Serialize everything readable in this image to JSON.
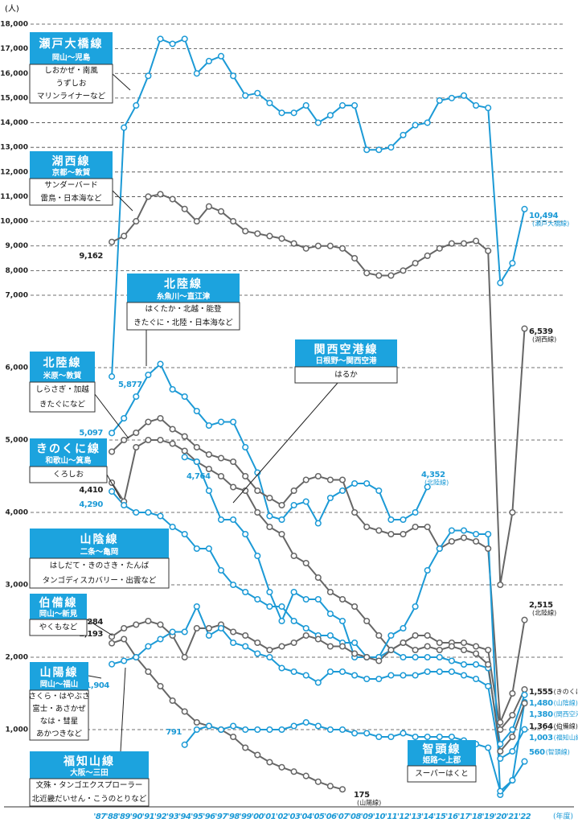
{
  "chart_data": {
    "type": "line",
    "y_label": "(人)",
    "x_label": "(年度)",
    "categories": [
      "'87",
      "'88",
      "'89",
      "'90",
      "'91",
      "'92",
      "'93",
      "'94",
      "'95",
      "'96",
      "'97",
      "'98",
      "'99",
      "'00",
      "'01",
      "'02",
      "'03",
      "'04",
      "'05",
      "'06",
      "'07",
      "'08",
      "'09",
      "'10",
      "'11",
      "'12",
      "'13",
      "'14",
      "'15",
      "'16",
      "'17",
      "'18",
      "'19",
      "'20",
      "'21",
      "'22"
    ],
    "ylim": [
      0,
      18000
    ],
    "y_break": 7000,
    "grid": true,
    "yticks": [
      {
        "value": 1000,
        "label": "1,000"
      },
      {
        "value": 2000,
        "label": "2,000"
      },
      {
        "value": 3000,
        "label": "3,000"
      },
      {
        "value": 4000,
        "label": "4,000"
      },
      {
        "value": 5000,
        "label": "5,000"
      },
      {
        "value": 6000,
        "label": "6,000"
      },
      {
        "value": 7000,
        "label": "7,000"
      },
      {
        "value": 8000,
        "label": "8,000"
      },
      {
        "value": 9000,
        "label": "9,000"
      },
      {
        "value": 10000,
        "label": "10,000"
      },
      {
        "value": 11000,
        "label": "11,000"
      },
      {
        "value": 12000,
        "label": "12,000"
      },
      {
        "value": 13000,
        "label": "13,000"
      },
      {
        "value": 14000,
        "label": "14,000"
      },
      {
        "value": 15000,
        "label": "15,000"
      },
      {
        "value": 16000,
        "label": "16,000"
      },
      {
        "value": 17000,
        "label": "17,000"
      },
      {
        "value": 18000,
        "label": "18,000"
      }
    ],
    "series": [
      {
        "name": "瀬戸大橋線",
        "section": "岡山～児島",
        "trains": [
          "しおかぜ・南風",
          "うずしお",
          "マリンライナーなど"
        ],
        "color": "#1c9ad6",
        "note": "(瀬戸大橋線)",
        "values": [
          null,
          5877,
          13800,
          14700,
          15900,
          17400,
          17200,
          17400,
          16000,
          16500,
          16700,
          15900,
          15100,
          15200,
          14800,
          14400,
          14400,
          14700,
          14000,
          14300,
          14700,
          14700,
          12900,
          12900,
          13000,
          13500,
          13900,
          14000,
          14900,
          15000,
          15100,
          14700,
          14600,
          7500,
          8300,
          10494
        ],
        "value_labels": [
          null,
          "5,877",
          null,
          null,
          null,
          null,
          null,
          null,
          null,
          null,
          null,
          null,
          null,
          null,
          null,
          null,
          null,
          null,
          null,
          null,
          null,
          null,
          null,
          null,
          null,
          null,
          null,
          null,
          null,
          null,
          null,
          null,
          null,
          null,
          null,
          "10,494"
        ]
      },
      {
        "name": "湖西線",
        "section": "京都～敦賀",
        "trains": [
          "サンダーバード",
          "雷鳥・日本海など"
        ],
        "color": "#666666",
        "note": "(湖西線)",
        "values": [
          null,
          9162,
          9400,
          10000,
          11000,
          11100,
          10900,
          10500,
          10000,
          10600,
          10400,
          10000,
          9600,
          9500,
          9400,
          9300,
          9100,
          8900,
          9000,
          9000,
          8900,
          8500,
          7900,
          7800,
          7800,
          8000,
          8300,
          8600,
          8900,
          9100,
          9100,
          9200,
          8800,
          3000,
          4000,
          6539
        ],
        "value_labels": [
          null,
          "9,162",
          null,
          null,
          null,
          null,
          null,
          null,
          null,
          null,
          null,
          null,
          null,
          null,
          null,
          null,
          null,
          null,
          null,
          null,
          null,
          null,
          null,
          null,
          null,
          null,
          null,
          null,
          null,
          null,
          null,
          null,
          null,
          null,
          null,
          "6,539"
        ]
      },
      {
        "name": "北陸線",
        "section": "糸魚川～直江津",
        "trains": [
          "はくたか・北越・能登",
          "きたぐに・北陸・日本海など"
        ],
        "color": "#1c9ad6",
        "note": "(北陸線)",
        "values": [
          null,
          5097,
          5300,
          5600,
          5900,
          6050,
          5700,
          5600,
          5400,
          5200,
          5250,
          5250,
          4900,
          4550,
          3950,
          3900,
          4100,
          4150,
          3850,
          4200,
          4300,
          4400,
          4400,
          4300,
          3900,
          3900,
          4000,
          4352,
          null,
          null,
          null,
          null,
          null,
          null,
          null,
          null
        ],
        "value_labels": [
          null,
          "5,097",
          null,
          null,
          null,
          null,
          null,
          null,
          null,
          null,
          null,
          null,
          null,
          null,
          null,
          null,
          null,
          null,
          null,
          null,
          null,
          null,
          null,
          null,
          null,
          null,
          null,
          "4,352",
          null,
          null,
          null,
          null,
          null,
          null,
          null,
          null
        ]
      },
      {
        "name": "北陸線",
        "section": "米原～敦賀",
        "trains": [
          "しらさぎ・加越",
          "きたぐになど"
        ],
        "color": "#666666",
        "note": "(北陸線)",
        "values": [
          null,
          4839,
          5000,
          5100,
          5250,
          5300,
          5150,
          5050,
          4900,
          4800,
          4750,
          4700,
          4500,
          4300,
          4200,
          4100,
          4300,
          4450,
          4500,
          4450,
          4450,
          4000,
          3800,
          3750,
          3700,
          3700,
          3800,
          3800,
          3500,
          3600,
          3650,
          3600,
          3500,
          1100,
          1500,
          2515
        ],
        "value_labels": [
          null,
          "4,839",
          null,
          null,
          null,
          null,
          null,
          null,
          null,
          null,
          null,
          null,
          null,
          null,
          null,
          null,
          null,
          null,
          null,
          null,
          null,
          null,
          null,
          null,
          null,
          null,
          null,
          null,
          null,
          null,
          null,
          null,
          null,
          null,
          null,
          "2,515"
        ]
      },
      {
        "name": "きのくに線",
        "section": "和歌山～箕島",
        "trains": [
          "くろしお"
        ],
        "color": "#666666",
        "note": "(きのくに線)",
        "values": [
          null,
          4410,
          4150,
          4900,
          5000,
          5000,
          4950,
          4850,
          4700,
          4600,
          4500,
          4350,
          4300,
          4000,
          3800,
          3700,
          3400,
          3300,
          3100,
          2900,
          2800,
          2700,
          2500,
          2300,
          2100,
          2200,
          2300,
          2300,
          2200,
          2200,
          2200,
          2150,
          2100,
          1000,
          1200,
          1555
        ],
        "value_labels": [
          null,
          "4,410",
          null,
          null,
          null,
          null,
          null,
          null,
          null,
          null,
          null,
          null,
          null,
          null,
          null,
          null,
          null,
          null,
          null,
          null,
          null,
          null,
          null,
          null,
          null,
          null,
          null,
          null,
          null,
          null,
          null,
          null,
          null,
          null,
          null,
          "1,555"
        ]
      },
      {
        "name": "山陰線",
        "section": "二条～亀岡",
        "trains": [
          "はしだて・きのさき・たんば",
          "タンゴディスカバリー・出雲など"
        ],
        "color": "#1c9ad6",
        "note": "(山陰線)",
        "values": [
          null,
          4290,
          4100,
          4000,
          4000,
          3950,
          3800,
          3700,
          3500,
          3500,
          3200,
          3000,
          2900,
          2800,
          2700,
          2700,
          2500,
          2400,
          2300,
          2300,
          2200,
          2200,
          2000,
          2000,
          2100,
          2000,
          2000,
          2000,
          2000,
          1950,
          1900,
          1900,
          1850,
          800,
          1000,
          1480
        ],
        "value_labels": [
          null,
          "4,290",
          null,
          null,
          null,
          null,
          null,
          null,
          null,
          null,
          null,
          null,
          null,
          null,
          null,
          null,
          null,
          null,
          null,
          null,
          null,
          null,
          null,
          null,
          null,
          null,
          null,
          null,
          null,
          null,
          null,
          null,
          null,
          null,
          null,
          "1,480"
        ]
      },
      {
        "name": "関西空港線",
        "section": "日根野～関西空港",
        "trains": [
          "はるか"
        ],
        "color": "#1c9ad6",
        "note": "(関西空港線)",
        "values": [
          null,
          null,
          null,
          null,
          null,
          null,
          null,
          4764,
          4700,
          4300,
          3900,
          3900,
          3700,
          3400,
          2900,
          2500,
          2900,
          2800,
          2800,
          2600,
          2500,
          2000,
          2000,
          2000,
          2300,
          2400,
          2700,
          3200,
          3500,
          3750,
          3750,
          3700,
          3700,
          100,
          300,
          1380
        ],
        "value_labels": [
          null,
          null,
          null,
          null,
          null,
          null,
          null,
          "4,764",
          null,
          null,
          null,
          null,
          null,
          null,
          null,
          null,
          null,
          null,
          null,
          null,
          null,
          null,
          null,
          null,
          null,
          null,
          null,
          null,
          null,
          null,
          null,
          null,
          null,
          null,
          null,
          "1,380"
        ]
      },
      {
        "name": "伯備線",
        "section": "岡山～新見",
        "trains": [
          "やくもなど"
        ],
        "color": "#666666",
        "note": "(伯備線)",
        "values": [
          null,
          2284,
          2400,
          2450,
          2500,
          2450,
          2300,
          2000,
          2400,
          2400,
          2450,
          2350,
          2300,
          2200,
          2100,
          2150,
          2200,
          2300,
          2250,
          2150,
          2150,
          2050,
          2000,
          1950,
          2100,
          2200,
          2100,
          2150,
          2100,
          2150,
          2100,
          2050,
          1900,
          700,
          900,
          1364
        ],
        "value_labels": [
          null,
          "2,284",
          null,
          null,
          null,
          null,
          null,
          null,
          null,
          null,
          null,
          null,
          null,
          null,
          null,
          null,
          null,
          null,
          null,
          null,
          null,
          null,
          null,
          null,
          null,
          null,
          null,
          null,
          null,
          null,
          null,
          null,
          null,
          null,
          null,
          "1,364"
        ]
      },
      {
        "name": "山陽線",
        "section": "岡山～福山",
        "trains": [
          "さくら・はやぶさ",
          "富士・あさかぜ",
          "なは・彗星",
          "あかつきなど"
        ],
        "color": "#666666",
        "note": "(山陽線)",
        "values": [
          null,
          2193,
          2250,
          2000,
          1800,
          1600,
          1400,
          1250,
          1100,
          1050,
          1000,
          900,
          750,
          650,
          550,
          480,
          420,
          360,
          280,
          220,
          175,
          null,
          null,
          null,
          null,
          null,
          null,
          null,
          null,
          null,
          null,
          null,
          null,
          null,
          null,
          null
        ],
        "value_labels": [
          null,
          "2,193",
          null,
          null,
          null,
          null,
          null,
          null,
          null,
          null,
          null,
          null,
          null,
          null,
          null,
          null,
          null,
          null,
          null,
          null,
          "175",
          null,
          null,
          null,
          null,
          null,
          null,
          null,
          null,
          null,
          null,
          null,
          null,
          null,
          null,
          null
        ]
      },
      {
        "name": "福知山線",
        "section": "大阪～三田",
        "trains": [
          "文殊・タンゴエクスプローラー",
          "北近畿だいせん・こうのとりなど"
        ],
        "color": "#1c9ad6",
        "note": "(福知山線)",
        "values": [
          null,
          1904,
          1950,
          2000,
          2150,
          2250,
          2350,
          2350,
          2700,
          2300,
          2400,
          2200,
          2150,
          2050,
          2000,
          1850,
          1800,
          1750,
          1650,
          1800,
          1800,
          1750,
          1700,
          1700,
          1750,
          1750,
          1750,
          1800,
          1800,
          1800,
          1750,
          1700,
          1600,
          600,
          700,
          1003
        ],
        "value_labels": [
          null,
          "1,904",
          null,
          null,
          null,
          null,
          null,
          null,
          null,
          null,
          null,
          null,
          null,
          null,
          null,
          null,
          null,
          null,
          null,
          null,
          null,
          null,
          null,
          null,
          null,
          null,
          null,
          null,
          null,
          null,
          null,
          null,
          null,
          null,
          null,
          "1,003"
        ]
      },
      {
        "name": "智頭線",
        "section": "姫路～上郡",
        "trains": [
          "スーパーはくと"
        ],
        "color": "#1c9ad6",
        "note": "(智頭線)",
        "values": [
          null,
          null,
          null,
          null,
          null,
          null,
          null,
          791,
          1000,
          1050,
          1000,
          1050,
          1000,
          1000,
          1000,
          1000,
          1050,
          1100,
          1050,
          1000,
          1000,
          950,
          950,
          900,
          900,
          950,
          900,
          900,
          900,
          900,
          850,
          800,
          750,
          150,
          300,
          560
        ],
        "value_labels": [
          null,
          null,
          null,
          null,
          null,
          null,
          null,
          "791",
          null,
          null,
          null,
          null,
          null,
          null,
          null,
          null,
          null,
          null,
          null,
          null,
          null,
          null,
          null,
          null,
          null,
          null,
          null,
          null,
          null,
          null,
          null,
          null,
          null,
          null,
          null,
          "560"
        ]
      }
    ]
  }
}
